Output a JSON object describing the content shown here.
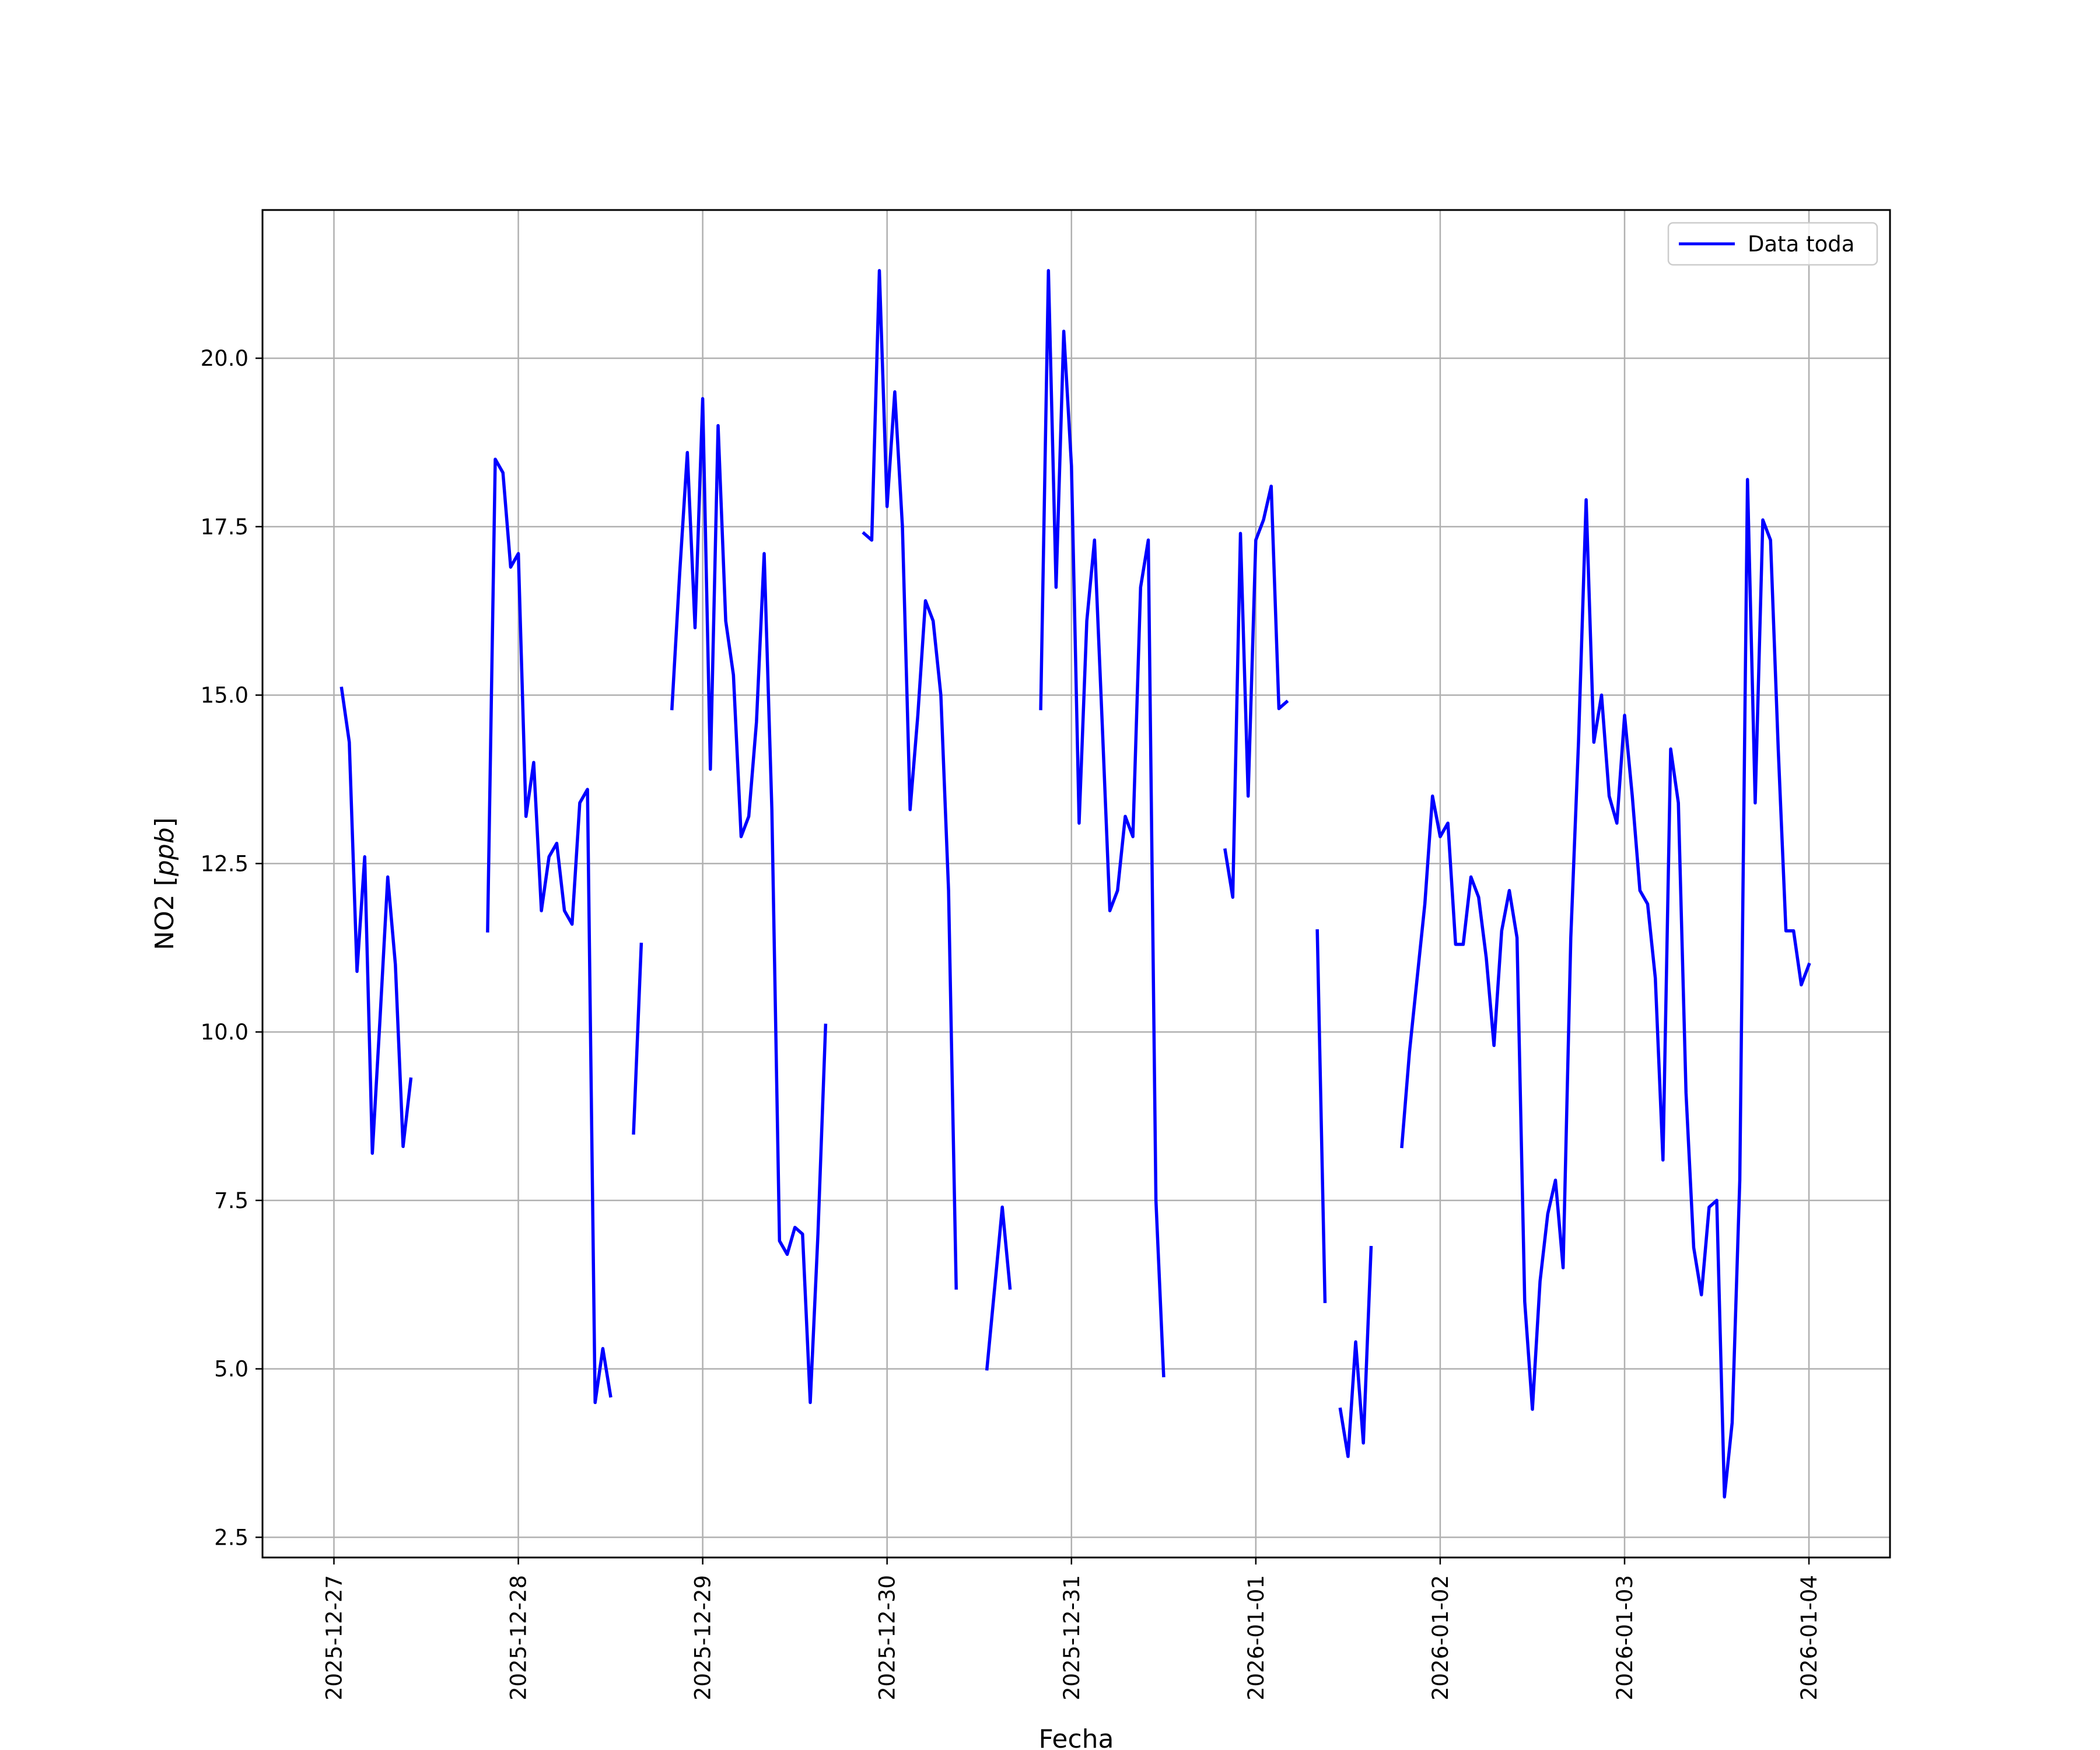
{
  "chart_data": {
    "type": "line",
    "title": "",
    "xlabel": "Fecha",
    "ylabel": "NO2 [ppb]",
    "ylabel_parts": {
      "prefix": "NO2 [",
      "unit": "ppb",
      "suffix": "]"
    },
    "xlim": [
      "2025-12-26T14:42",
      "2026-01-04T10:33"
    ],
    "ylim": [
      2.2,
      22.2
    ],
    "x_ticks": [
      "2025-12-27",
      "2025-12-28",
      "2025-12-29",
      "2025-12-30",
      "2025-12-31",
      "2026-01-01",
      "2026-01-02",
      "2026-01-03",
      "2026-01-04"
    ],
    "y_ticks": [
      2.5,
      5.0,
      7.5,
      10.0,
      12.5,
      15.0,
      17.5,
      20.0
    ],
    "y_tick_labels": [
      "2.5",
      "5.0",
      "7.5",
      "10.0",
      "12.5",
      "15.0",
      "17.5",
      "20.0"
    ],
    "grid": true,
    "legend_position": "upper right",
    "series": [
      {
        "name": "Data toda",
        "color": "#0000ff",
        "segments": [
          [
            [
              "2025-12-27T01:00",
              15.1
            ],
            [
              "2025-12-27T02:00",
              14.3
            ],
            [
              "2025-12-27T03:00",
              10.9
            ],
            [
              "2025-12-27T04:00",
              12.6
            ],
            [
              "2025-12-27T05:00",
              8.2
            ],
            [
              "2025-12-27T06:00",
              10.2
            ],
            [
              "2025-12-27T07:00",
              12.3
            ],
            [
              "2025-12-27T08:00",
              11.0
            ],
            [
              "2025-12-27T09:00",
              8.3
            ],
            [
              "2025-12-27T10:00",
              9.3
            ]
          ],
          [
            [
              "2025-12-27T20:00",
              11.5
            ],
            [
              "2025-12-27T21:00",
              18.5
            ],
            [
              "2025-12-27T22:00",
              18.3
            ],
            [
              "2025-12-27T23:00",
              16.9
            ],
            [
              "2025-12-28T00:00",
              17.1
            ],
            [
              "2025-12-28T01:00",
              13.2
            ],
            [
              "2025-12-28T02:00",
              14.0
            ],
            [
              "2025-12-28T03:00",
              11.8
            ],
            [
              "2025-12-28T04:00",
              12.6
            ],
            [
              "2025-12-28T05:00",
              12.8
            ],
            [
              "2025-12-28T06:00",
              11.8
            ],
            [
              "2025-12-28T07:00",
              11.6
            ],
            [
              "2025-12-28T08:00",
              13.4
            ],
            [
              "2025-12-28T09:00",
              13.6
            ],
            [
              "2025-12-28T10:00",
              4.5
            ],
            [
              "2025-12-28T11:00",
              5.3
            ],
            [
              "2025-12-28T12:00",
              4.6
            ]
          ],
          [
            [
              "2025-12-28T15:00",
              8.5
            ],
            [
              "2025-12-28T16:00",
              11.3
            ]
          ],
          [
            [
              "2025-12-28T20:00",
              14.8
            ],
            [
              "2025-12-28T21:00",
              16.8
            ],
            [
              "2025-12-28T22:00",
              18.6
            ],
            [
              "2025-12-28T23:00",
              16.0
            ],
            [
              "2025-12-29T00:00",
              19.4
            ],
            [
              "2025-12-29T01:00",
              13.9
            ],
            [
              "2025-12-29T02:00",
              19.0
            ],
            [
              "2025-12-29T03:00",
              16.1
            ],
            [
              "2025-12-29T04:00",
              15.3
            ],
            [
              "2025-12-29T05:00",
              12.9
            ],
            [
              "2025-12-29T06:00",
              13.2
            ],
            [
              "2025-12-29T07:00",
              14.6
            ],
            [
              "2025-12-29T08:00",
              17.1
            ],
            [
              "2025-12-29T09:00",
              13.3
            ],
            [
              "2025-12-29T10:00",
              6.9
            ],
            [
              "2025-12-29T11:00",
              6.7
            ],
            [
              "2025-12-29T12:00",
              7.1
            ],
            [
              "2025-12-29T13:00",
              7.0
            ],
            [
              "2025-12-29T14:00",
              4.5
            ],
            [
              "2025-12-29T15:00",
              7.0
            ],
            [
              "2025-12-29T16:00",
              10.1
            ]
          ],
          [
            [
              "2025-12-29T21:00",
              17.4
            ],
            [
              "2025-12-29T22:00",
              17.3
            ],
            [
              "2025-12-29T23:00",
              21.3
            ],
            [
              "2025-12-30T00:00",
              17.8
            ],
            [
              "2025-12-30T01:00",
              19.5
            ],
            [
              "2025-12-30T02:00",
              17.5
            ],
            [
              "2025-12-30T03:00",
              13.3
            ],
            [
              "2025-12-30T04:00",
              14.7
            ],
            [
              "2025-12-30T05:00",
              16.4
            ],
            [
              "2025-12-30T06:00",
              16.1
            ],
            [
              "2025-12-30T07:00",
              15.0
            ],
            [
              "2025-12-30T08:00",
              12.1
            ],
            [
              "2025-12-30T09:00",
              6.2
            ]
          ],
          [
            [
              "2025-12-30T13:00",
              5.0
            ],
            [
              "2025-12-30T14:00",
              6.2
            ],
            [
              "2025-12-30T15:00",
              7.4
            ],
            [
              "2025-12-30T16:00",
              6.2
            ]
          ],
          [
            [
              "2025-12-30T20:00",
              14.8
            ],
            [
              "2025-12-30T21:00",
              21.3
            ],
            [
              "2025-12-30T22:00",
              16.6
            ],
            [
              "2025-12-30T23:00",
              20.4
            ],
            [
              "2025-12-31T00:00",
              18.4
            ],
            [
              "2025-12-31T01:00",
              13.1
            ],
            [
              "2025-12-31T02:00",
              16.1
            ],
            [
              "2025-12-31T03:00",
              17.3
            ],
            [
              "2025-12-31T04:00",
              14.6
            ],
            [
              "2025-12-31T05:00",
              11.8
            ],
            [
              "2025-12-31T06:00",
              12.1
            ],
            [
              "2025-12-31T07:00",
              13.2
            ],
            [
              "2025-12-31T08:00",
              12.9
            ],
            [
              "2025-12-31T09:00",
              16.6
            ],
            [
              "2025-12-31T10:00",
              17.3
            ],
            [
              "2025-12-31T11:00",
              7.5
            ],
            [
              "2025-12-31T12:00",
              4.9
            ]
          ],
          [
            [
              "2025-12-31T20:00",
              12.7
            ],
            [
              "2025-12-31T21:00",
              12.0
            ],
            [
              "2025-12-31T22:00",
              17.4
            ],
            [
              "2025-12-31T23:00",
              13.5
            ],
            [
              "2026-01-01T00:00",
              17.3
            ],
            [
              "2026-01-01T01:00",
              17.6
            ],
            [
              "2026-01-01T02:00",
              18.1
            ],
            [
              "2026-01-01T03:00",
              14.8
            ],
            [
              "2026-01-01T04:00",
              14.9
            ]
          ],
          [
            [
              "2026-01-01T08:00",
              11.5
            ],
            [
              "2026-01-01T09:00",
              6.0
            ]
          ],
          [
            [
              "2026-01-01T11:00",
              4.4
            ],
            [
              "2026-01-01T12:00",
              3.7
            ],
            [
              "2026-01-01T13:00",
              5.4
            ],
            [
              "2026-01-01T14:00",
              3.9
            ],
            [
              "2026-01-01T15:00",
              6.8
            ]
          ],
          [
            [
              "2026-01-01T19:00",
              8.3
            ],
            [
              "2026-01-01T20:00",
              9.7
            ],
            [
              "2026-01-01T21:00",
              10.8
            ],
            [
              "2026-01-01T22:00",
              11.9
            ],
            [
              "2026-01-01T23:00",
              13.5
            ],
            [
              "2026-01-02T00:00",
              12.9
            ],
            [
              "2026-01-02T01:00",
              13.1
            ],
            [
              "2026-01-02T02:00",
              11.3
            ],
            [
              "2026-01-02T03:00",
              11.3
            ],
            [
              "2026-01-02T04:00",
              12.3
            ],
            [
              "2026-01-02T05:00",
              12.0
            ],
            [
              "2026-01-02T06:00",
              11.1
            ],
            [
              "2026-01-02T07:00",
              9.8
            ],
            [
              "2026-01-02T08:00",
              11.5
            ],
            [
              "2026-01-02T09:00",
              12.1
            ],
            [
              "2026-01-02T10:00",
              11.4
            ],
            [
              "2026-01-02T11:00",
              6.0
            ],
            [
              "2026-01-02T12:00",
              4.4
            ],
            [
              "2026-01-02T13:00",
              6.3
            ],
            [
              "2026-01-02T14:00",
              7.3
            ],
            [
              "2026-01-02T15:00",
              7.8
            ],
            [
              "2026-01-02T16:00",
              6.5
            ],
            [
              "2026-01-02T17:00",
              11.4
            ],
            [
              "2026-01-02T18:00",
              14.3
            ],
            [
              "2026-01-02T19:00",
              17.9
            ],
            [
              "2026-01-02T20:00",
              14.3
            ],
            [
              "2026-01-02T21:00",
              15.0
            ],
            [
              "2026-01-02T22:00",
              13.5
            ],
            [
              "2026-01-02T23:00",
              13.1
            ],
            [
              "2026-01-03T00:00",
              14.7
            ],
            [
              "2026-01-03T01:00",
              13.5
            ],
            [
              "2026-01-03T02:00",
              12.1
            ],
            [
              "2026-01-03T03:00",
              11.9
            ],
            [
              "2026-01-03T04:00",
              10.8
            ],
            [
              "2026-01-03T05:00",
              8.1
            ],
            [
              "2026-01-03T06:00",
              14.2
            ],
            [
              "2026-01-03T07:00",
              13.4
            ],
            [
              "2026-01-03T08:00",
              9.1
            ],
            [
              "2026-01-03T09:00",
              6.8
            ],
            [
              "2026-01-03T10:00",
              6.1
            ],
            [
              "2026-01-03T11:00",
              7.4
            ],
            [
              "2026-01-03T12:00",
              7.5
            ],
            [
              "2026-01-03T13:00",
              3.1
            ],
            [
              "2026-01-03T14:00",
              4.2
            ],
            [
              "2026-01-03T15:00",
              7.8
            ],
            [
              "2026-01-03T16:00",
              18.2
            ],
            [
              "2026-01-03T17:00",
              13.4
            ],
            [
              "2026-01-03T18:00",
              17.6
            ],
            [
              "2026-01-03T19:00",
              17.3
            ],
            [
              "2026-01-03T20:00",
              14.2
            ],
            [
              "2026-01-03T21:00",
              11.5
            ],
            [
              "2026-01-03T22:00",
              11.5
            ],
            [
              "2026-01-03T23:00",
              10.7
            ],
            [
              "2026-01-04T00:00",
              11.0
            ]
          ]
        ]
      }
    ]
  }
}
